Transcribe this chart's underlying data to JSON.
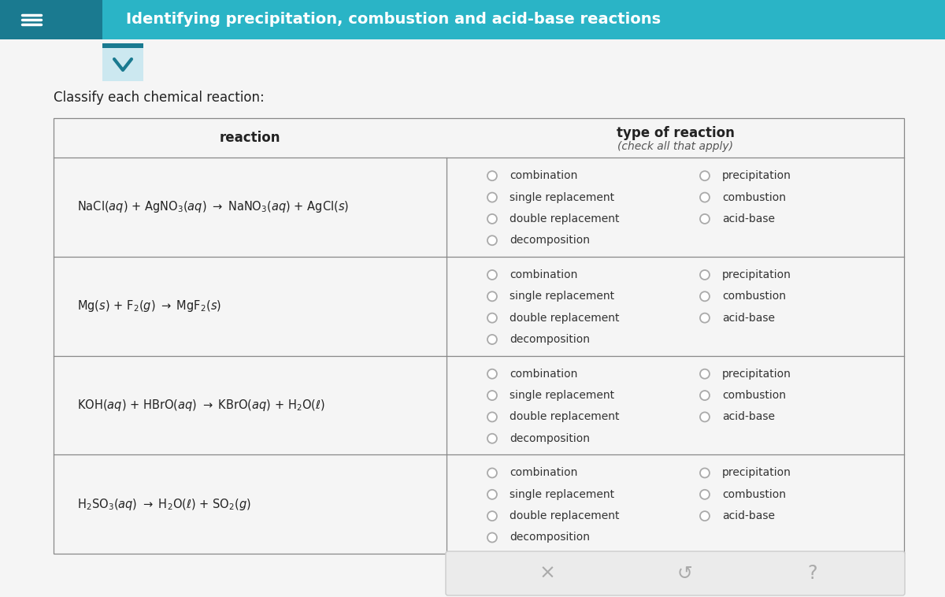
{
  "title": "Identifying precipitation, combustion and acid-base reactions",
  "subtitle": "Classify each chemical reaction:",
  "header_bg": "#2ab4c6",
  "header_text_color": "#ffffff",
  "header_dark_left": "#1a7a90",
  "page_bg": "#f5f5f5",
  "col1_header": "reaction",
  "col2_header": "type of reaction",
  "col2_subheader": "(check all that apply)",
  "reactions": [
    "NaCl$(aq)$ + AgNO$_3(aq)$ → NaNO$_3(aq)$ + AgCl$(s)$",
    "Mg$(s)$ + F$_2(g)$ → MgF$_2(s)$",
    "KOH$(aq)$ + HBrO$(aq)$ → KBrO$(aq)$ + H$_2$O$(ℓ)$",
    "H$_2$SO$_3(aq)$ → H$_2$O$(ℓ)$ + SO$_2(g)$"
  ],
  "options_col1": [
    "combination",
    "single replacement",
    "double replacement",
    "decomposition"
  ],
  "options_col2": [
    "precipitation",
    "combustion",
    "acid-base"
  ],
  "table_border": "#888888",
  "radio_color": "#aaaaaa",
  "radio_inner": "#dddddd",
  "bottom_bar_bg": "#ebebeb",
  "bottom_bar_border": "#cccccc",
  "nav_icon_color": "#aaaaaa",
  "chevron_bg_outer": "#cce8f0",
  "chevron_bg_inner": "#dff0f5",
  "chevron_color": "#1a7a90",
  "chevron_border": "#1a7a90",
  "text_dark": "#222222",
  "text_option": "#333333"
}
